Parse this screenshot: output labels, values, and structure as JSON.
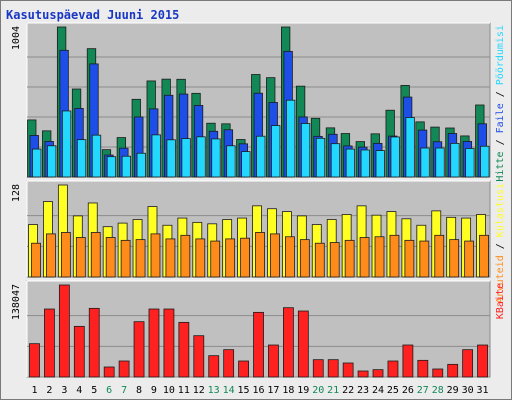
{
  "chart_data": {
    "type": "bar",
    "title": "Kasutuspäevad Juuni 2015",
    "colors": {
      "title": "#1a37c4",
      "background": "#ececec",
      "panel": "#c0c0c0",
      "hits": "#118855",
      "files": "#1e4ee8",
      "pages": "#22d8ff",
      "visits": "#ffff22",
      "sites": "#ff8c1a",
      "kbytes": "#ff2020",
      "weekend_label": "#118855",
      "day_label": "#000000"
    },
    "categories": [
      "1",
      "2",
      "3",
      "4",
      "5",
      "6",
      "7",
      "8",
      "9",
      "10",
      "11",
      "12",
      "13",
      "14",
      "15",
      "16",
      "17",
      "18",
      "19",
      "20",
      "21",
      "22",
      "23",
      "24",
      "25",
      "26",
      "27",
      "28",
      "29",
      "30",
      "31"
    ],
    "weekend_days": [
      "6",
      "7",
      "13",
      "14",
      "20",
      "21",
      "27",
      "28"
    ],
    "panels": [
      {
        "ymax_label": "1004",
        "ymax": 1004,
        "legend": [
          {
            "label": "Hitte",
            "color": "#118855"
          },
          {
            "label": "Faile",
            "color": "#1e4ee8"
          },
          {
            "label": "Pöördumisi",
            "color": "#22d8ff"
          }
        ],
        "series": [
          {
            "name": "Hitte",
            "values": [
              382,
              309,
              1004,
              589,
              859,
              183,
              264,
              520,
              643,
              655,
              654,
              560,
              360,
              356,
              251,
              686,
              665,
              1004,
              608,
              393,
              329,
              291,
              237,
              289,
              447,
              613,
              369,
              334,
              328,
              275,
              482
            ]
          },
          {
            "name": "Faile",
            "values": [
              278,
              238,
              848,
              459,
              757,
              147,
              193,
              402,
              456,
              547,
              555,
              479,
              306,
              316,
              222,
              561,
              499,
              841,
              402,
              272,
              286,
              208,
              200,
              225,
              274,
              535,
              314,
              236,
              291,
              238,
              356
            ]
          },
          {
            "name": "Pöördumisi",
            "values": [
              187,
              209,
              442,
              250,
              280,
              136,
              139,
              159,
              282,
              249,
              257,
              269,
              255,
              209,
              170,
              273,
              344,
              514,
              358,
              259,
              223,
              187,
              181,
              177,
              268,
              398,
              194,
              194,
              225,
              191,
              206
            ]
          }
        ]
      },
      {
        "ymax_label": "128",
        "ymax": 128,
        "legend": [
          {
            "label": "Arvuteid",
            "color": "#ff8c1a"
          },
          {
            "label": "Külastusi",
            "color": "#ffff22"
          }
        ],
        "series": [
          {
            "name": "Külastusi",
            "values": [
              73,
              105,
              128,
              85,
              103,
              70,
              75,
              80,
              98,
              72,
              82,
              76,
              74,
              80,
              82,
              99,
              95,
              91,
              85,
              73,
              80,
              87,
              99,
              86,
              91,
              81,
              72,
              92,
              83,
              82,
              87
            ]
          },
          {
            "name": "Arvuteid",
            "values": [
              47,
              60,
              62,
              55,
              62,
              55,
              51,
              52,
              60,
              53,
              58,
              53,
              50,
              53,
              54,
              62,
              60,
              56,
              52,
              47,
              48,
              51,
              55,
              56,
              58,
              51,
              50,
              58,
              52,
              50,
              58
            ]
          }
        ]
      },
      {
        "ymax_label": "138047",
        "ymax": 138047,
        "legend": [
          {
            "label": "KBaite",
            "color": "#ff2020"
          }
        ],
        "series": [
          {
            "name": "KBaite",
            "values": [
              50010,
              102000,
              138047,
              76000,
              103000,
              15000,
              24000,
              83000,
              102000,
              102000,
              82000,
              62000,
              32000,
              41000,
              24000,
              97000,
              48000,
              104000,
              99000,
              26000,
              26000,
              21000,
              9000,
              11000,
              24000,
              48000,
              25000,
              12000,
              19000,
              41000,
              48000
            ]
          }
        ]
      }
    ]
  }
}
